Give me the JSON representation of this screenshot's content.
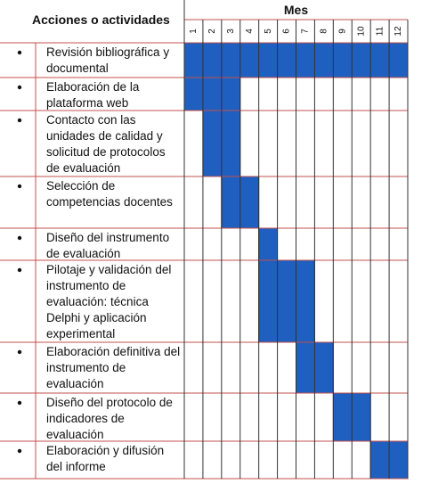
{
  "chart_data": {
    "type": "gantt",
    "column_header": "Acciones o actividades",
    "x_title": "Mes",
    "categories": [
      "1",
      "2",
      "3",
      "4",
      "5",
      "6",
      "7",
      "8",
      "9",
      "10",
      "11",
      "12"
    ],
    "color": "#1f5fbf",
    "tasks": [
      {
        "name": "Revisión bibliográfica y documental",
        "start": 1,
        "end": 12
      },
      {
        "name": "Elaboración de la plataforma web",
        "start": 1,
        "end": 3
      },
      {
        "name": "Contacto con las unidades de calidad y solicitud de protocolos de evaluación",
        "start": 2,
        "end": 3
      },
      {
        "name": "Selección de competencias docentes",
        "start": 3,
        "end": 4
      },
      {
        "name": "Diseño del instrumento de evaluación",
        "start": 5,
        "end": 5
      },
      {
        "name": "Pilotaje y validación del instrumento de evaluación: técnica Delphi y aplicación experimental",
        "start": 5,
        "end": 7
      },
      {
        "name": "Elaboración definitiva del instrumento de evaluación",
        "start": 7,
        "end": 8
      },
      {
        "name": "Diseño del protocolo de indicadores de evaluación",
        "start": 9,
        "end": 10
      },
      {
        "name": "Elaboración y difusión del informe",
        "start": 11,
        "end": 12
      }
    ]
  }
}
